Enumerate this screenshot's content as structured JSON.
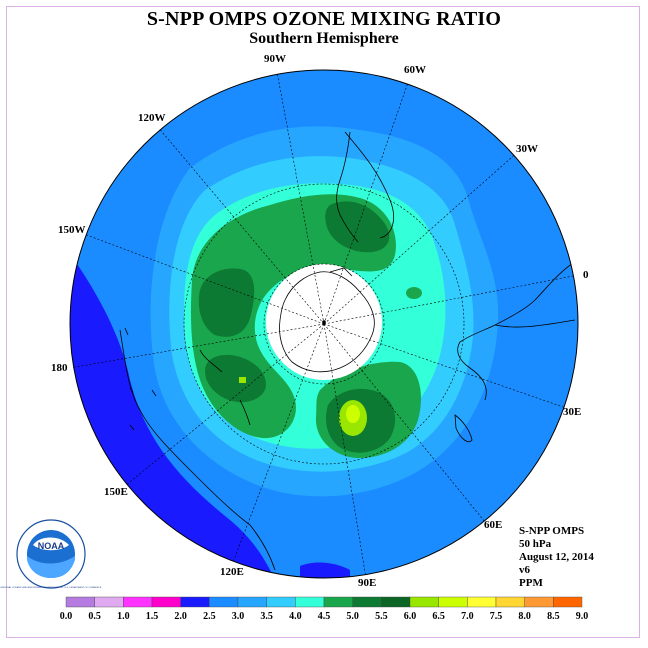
{
  "title": "S-NPP OMPS OZONE MIXING RATIO",
  "subtitle": "Southern Hemisphere",
  "longitude_labels": [
    "90W",
    "60W",
    "120W",
    "30W",
    "150W",
    "0",
    "180",
    "30E",
    "150E",
    "60E",
    "120E",
    "90E"
  ],
  "info": {
    "instrument": "S-NPP OMPS",
    "level": "50 hPa",
    "date": "August 12, 2014",
    "version": "v6",
    "units": "PPM"
  },
  "logo": {
    "text": "NOAA",
    "ring_text": "NATIONAL OCEANIC AND ATMOSPHERIC ADMINISTRATION · U.S. DEPARTMENT OF COMMERCE"
  },
  "colorbar": {
    "ticks": [
      "0.0",
      "0.5",
      "1.0",
      "1.5",
      "2.0",
      "2.5",
      "3.0",
      "3.5",
      "4.0",
      "4.5",
      "5.0",
      "5.5",
      "6.0",
      "6.5",
      "7.0",
      "7.5",
      "8.0",
      "8.5",
      "9.0"
    ],
    "colors": [
      "#b57be0",
      "#e0aaf0",
      "#ff33ff",
      "#ff00cc",
      "#1a1aff",
      "#1a8cff",
      "#26a6ff",
      "#33ccff",
      "#33ffd9",
      "#1aa64d",
      "#0d7a33",
      "#0b6626",
      "#99e600",
      "#ccff00",
      "#ffff33",
      "#ffd633",
      "#ff9933",
      "#ff6600",
      "#e61a1a",
      "#8c5a40"
    ]
  },
  "palette": {
    "deep_blue": "#1a1aff",
    "blue": "#1a8cff",
    "sky": "#26a6ff",
    "light_sky": "#33ccff",
    "cyan_green": "#33ffd9",
    "green": "#1aa64d",
    "dark_green": "#0d7a33",
    "yellow_green": "#ccff00"
  }
}
